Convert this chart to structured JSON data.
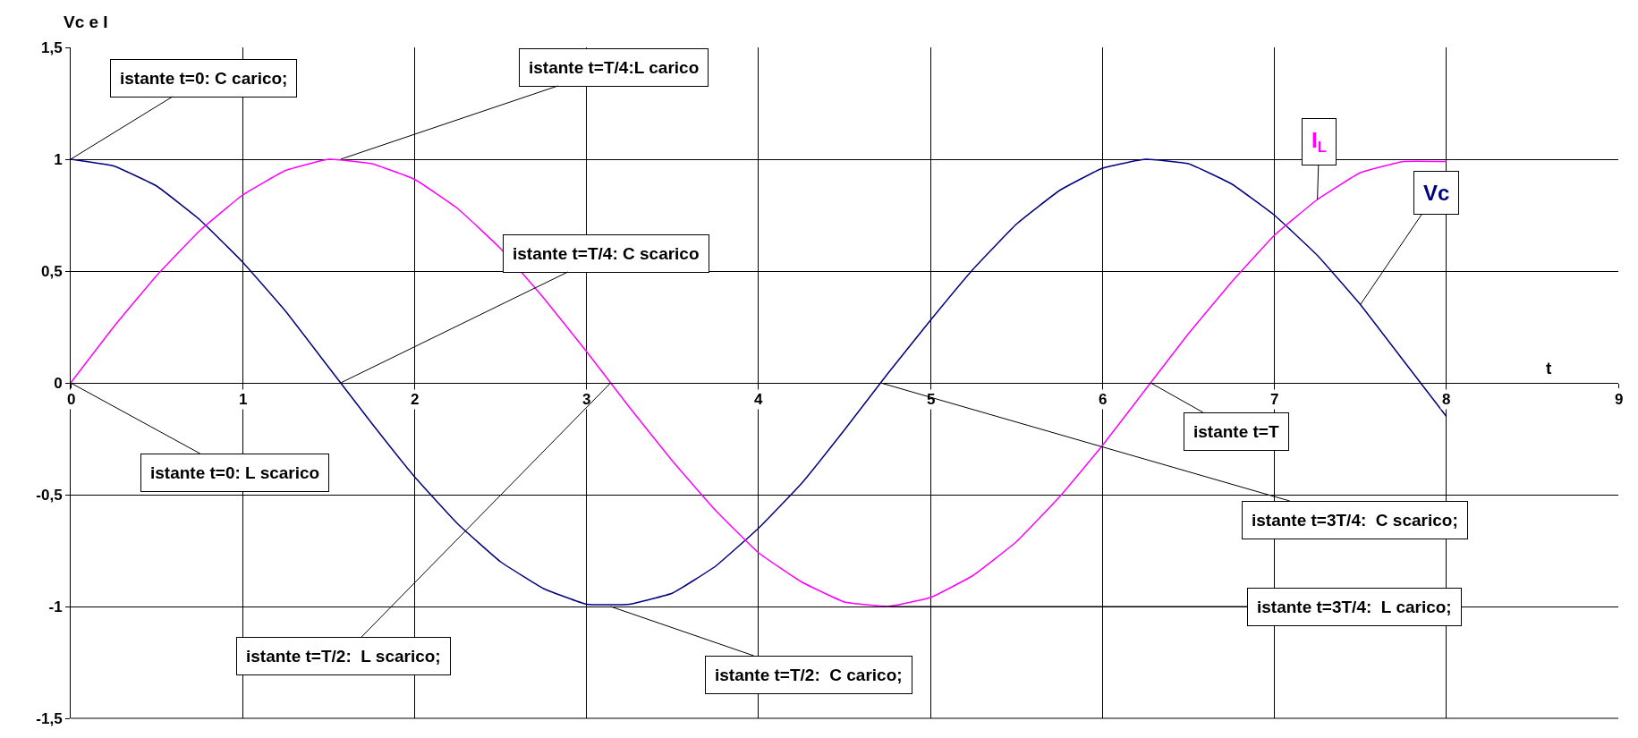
{
  "chart_data": {
    "type": "line",
    "xlabel": "t",
    "ylabel": "Vc e I",
    "x": [
      0,
      0.25,
      0.5,
      0.75,
      1,
      1.25,
      1.5,
      1.75,
      2,
      2.25,
      2.5,
      2.75,
      3,
      3.25,
      3.5,
      3.75,
      4,
      4.25,
      4.5,
      4.75,
      5,
      5.25,
      5.5,
      5.75,
      6,
      6.25,
      6.5,
      6.75,
      7,
      7.25,
      7.5,
      7.75,
      8
    ],
    "series": [
      {
        "name": "Vc",
        "color": "#000080",
        "values": [
          1,
          0.97,
          0.88,
          0.73,
          0.54,
          0.32,
          0.07,
          -0.18,
          -0.42,
          -0.63,
          -0.8,
          -0.92,
          -0.99,
          -0.99,
          -0.94,
          -0.82,
          -0.65,
          -0.45,
          -0.21,
          0.04,
          0.28,
          0.51,
          0.71,
          0.86,
          0.96,
          1,
          0.98,
          0.89,
          0.75,
          0.57,
          0.35,
          0.1,
          -0.15
        ]
      },
      {
        "name": "I$_{L}$",
        "color": "#ff00ff",
        "values": [
          0,
          0.25,
          0.48,
          0.68,
          0.84,
          0.95,
          1,
          0.98,
          0.91,
          0.78,
          0.6,
          0.38,
          0.14,
          -0.11,
          -0.35,
          -0.57,
          -0.76,
          -0.89,
          -0.98,
          -1,
          -0.96,
          -0.86,
          -0.71,
          -0.51,
          -0.28,
          -0.03,
          0.22,
          0.45,
          0.66,
          0.82,
          0.94,
          0.99,
          0.99
        ]
      }
    ],
    "xlim": [
      0,
      9
    ],
    "xticks": [
      0,
      1,
      2,
      3,
      4,
      5,
      6,
      7,
      8,
      9
    ],
    "ylim": [
      -1.5,
      1.5
    ],
    "yticks": [
      {
        "value": -1.5,
        "label": "-1,5"
      },
      -1,
      {
        "value": -0.5,
        "label": "-0,5"
      },
      0,
      {
        "value": 0.5,
        "label": "0,5"
      },
      1,
      {
        "value": 1.5,
        "label": "1,5"
      }
    ],
    "grid": true,
    "legend": false,
    "marker": "none",
    "line_style": "solid",
    "annotations": [
      {
        "text": "istante t=0: C carico;",
        "x": 0,
        "y": 1
      },
      {
        "text": "istante t=T/4:L carico",
        "x": 1.57,
        "y": 1
      },
      {
        "text": "istante t=T/4: C scarico",
        "x": 1.57,
        "y": 0
      },
      {
        "text": "istante t=0: L scarico",
        "x": 0,
        "y": 0
      },
      {
        "text": "istante t=T/2:  L scarico;",
        "x": 3.14,
        "y": 0
      },
      {
        "text": "istante t=T/2:  C carico;",
        "x": 3.14,
        "y": -1
      },
      {
        "text": "istante t=3T/4:  C scarico;",
        "x": 4.71,
        "y": 0
      },
      {
        "text": "istante t=3T/4:  L carico;",
        "x": 4.71,
        "y": -1
      },
      {
        "text": "istante t=T",
        "x": 6.28,
        "y": 0
      }
    ]
  }
}
